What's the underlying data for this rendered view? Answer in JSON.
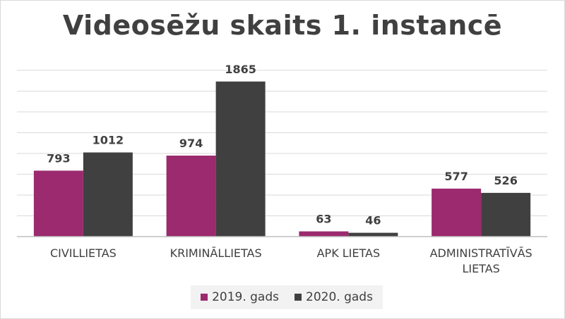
{
  "chart_data": {
    "type": "bar",
    "title": "Videosēžu skaits 1. instancē",
    "categories": [
      [
        "CIVILLIETAS"
      ],
      [
        "KRIMINĀLLIETAS"
      ],
      [
        "APK LIETAS"
      ],
      [
        "ADMINISTRATĪVĀS",
        "LIETAS"
      ]
    ],
    "series": [
      {
        "name": "2019. gads",
        "values": [
          793,
          974,
          63,
          577
        ],
        "color": "#9b2a6e"
      },
      {
        "name": "2020. gads",
        "values": [
          1012,
          1865,
          46,
          526
        ],
        "color": "#404040"
      }
    ],
    "ylim": [
      0,
      2100
    ],
    "grid": true,
    "legend_position": "bottom"
  }
}
